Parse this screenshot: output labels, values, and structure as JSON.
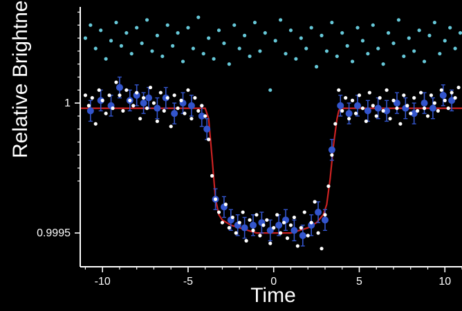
{
  "chart_data": {
    "type": "scatter",
    "title": "",
    "xlabel": "Time",
    "ylabel": "Relative Brightness",
    "xlim": [
      -11.3,
      11
    ],
    "ylim": [
      0.99937,
      1.00037
    ],
    "x_ticks": [
      -10,
      -5,
      0,
      5,
      10
    ],
    "x_tick_labels": [
      "-10",
      "-5",
      "0",
      "5",
      "10"
    ],
    "y_ticks": [
      0.9995,
      1
    ],
    "y_tick_labels": [
      "0.9995",
      "1"
    ],
    "grid": false,
    "legend": "none",
    "series": [
      {
        "kind": "model-line",
        "color": "#cc2222",
        "x": [
          -11.3,
          -4.0,
          -3.8,
          -3.6,
          -3.4,
          -3.2,
          -3.0,
          -2.5,
          -2.0,
          -1.5,
          -1.0,
          -0.5,
          0.0,
          0.5,
          1.0,
          1.5,
          2.0,
          2.5,
          2.9,
          3.1,
          3.3,
          3.5,
          3.7,
          3.8,
          3.9,
          11.0
        ],
        "y": [
          0.99998,
          0.99998,
          0.99994,
          0.99979,
          0.99963,
          0.99957,
          0.99955,
          0.99953,
          0.99952,
          0.99951,
          0.9995,
          0.9995,
          0.9995,
          0.9995,
          0.9995,
          0.99951,
          0.99952,
          0.99954,
          0.99957,
          0.99961,
          0.99971,
          0.99984,
          0.99994,
          0.99997,
          0.99998,
          0.99998
        ]
      },
      {
        "kind": "binned",
        "color": "#3355cc",
        "x": [
          -10.7,
          -10.1,
          -9.5,
          -9.0,
          -8.4,
          -8.0,
          -7.6,
          -7.3,
          -6.8,
          -6.3,
          -5.8,
          -5.3,
          -4.8,
          -4.2,
          -3.9,
          -3.4,
          -2.9,
          -2.5,
          -2.1,
          -1.7,
          -1.2,
          -0.7,
          -0.2,
          0.3,
          0.7,
          1.2,
          1.7,
          2.2,
          2.6,
          3.0,
          3.4,
          3.9,
          4.4,
          4.9,
          5.5,
          6.1,
          6.6,
          7.2,
          7.7,
          8.2,
          8.8,
          9.3,
          9.9,
          10.4
        ],
        "y": [
          0.99997,
          1.00001,
          0.99999,
          1.00006,
          1.00001,
          1.00003,
          1.0,
          1.00002,
          0.99998,
          1.00002,
          0.99996,
          1.0,
          0.99999,
          0.99995,
          0.9999,
          0.99963,
          0.9996,
          0.99955,
          0.99953,
          0.99952,
          0.99953,
          0.99954,
          0.99951,
          0.99953,
          0.99955,
          0.99951,
          0.99949,
          0.99953,
          0.99958,
          0.99955,
          0.99982,
          0.99999,
          0.99996,
          0.99999,
          0.99997,
          0.99998,
          0.99997,
          1.0,
          0.99998,
          0.99996,
          1.0,
          0.99998,
          1.00003,
          1.00001
        ],
        "err": [
          4e-05,
          4e-05,
          4e-05,
          4e-05,
          4e-05,
          4e-05,
          4e-05,
          4e-05,
          4e-05,
          4e-05,
          4e-05,
          4e-05,
          4e-05,
          4e-05,
          4e-05,
          4e-05,
          4e-05,
          4e-05,
          4e-05,
          4e-05,
          4e-05,
          4e-05,
          4e-05,
          4e-05,
          4e-05,
          4e-05,
          4e-05,
          4e-05,
          4e-05,
          4e-05,
          4e-05,
          4e-05,
          4e-05,
          4e-05,
          4e-05,
          4e-05,
          4e-05,
          4e-05,
          4e-05,
          4e-05,
          4e-05,
          4e-05,
          4e-05,
          4e-05
        ]
      },
      {
        "kind": "raw",
        "color": "#ffffff",
        "x": [
          -11.0,
          -10.8,
          -10.6,
          -10.4,
          -10.2,
          -10.0,
          -9.8,
          -9.6,
          -9.4,
          -9.2,
          -9.0,
          -8.8,
          -8.6,
          -8.4,
          -8.2,
          -8.0,
          -7.8,
          -7.6,
          -7.4,
          -7.2,
          -7.0,
          -6.8,
          -6.6,
          -6.4,
          -6.2,
          -6.0,
          -5.8,
          -5.6,
          -5.4,
          -5.2,
          -5.0,
          -4.8,
          -4.6,
          -4.4,
          -4.2,
          -4.0,
          -3.8,
          -3.6,
          -3.4,
          -3.2,
          -3.0,
          -2.8,
          -2.6,
          -2.4,
          -2.2,
          -2.0,
          -1.8,
          -1.6,
          -1.4,
          -1.2,
          -1.0,
          -0.8,
          -0.6,
          -0.4,
          -0.2,
          0.0,
          0.2,
          0.4,
          0.6,
          0.8,
          1.0,
          1.2,
          1.4,
          1.6,
          1.8,
          2.0,
          2.2,
          2.4,
          2.6,
          2.8,
          3.0,
          3.2,
          3.4,
          3.6,
          3.8,
          4.0,
          4.2,
          4.4,
          4.6,
          4.8,
          5.0,
          5.2,
          5.4,
          5.6,
          5.8,
          6.0,
          6.2,
          6.4,
          6.6,
          6.8,
          7.0,
          7.2,
          7.4,
          7.6,
          7.8,
          8.0,
          8.2,
          8.4,
          8.6,
          8.8,
          9.0,
          9.2,
          9.4,
          9.6,
          9.8,
          10.0,
          10.2,
          10.4,
          10.6,
          10.8
        ],
        "y": [
          1.00003,
          0.99999,
          1.00002,
          0.99992,
          1.00005,
          1.00001,
          0.99996,
          1.00003,
          0.99998,
          1.00008,
          1.00003,
          0.99997,
          1.00005,
          1.00001,
          0.99999,
          1.00004,
          0.99994,
          1.00002,
          0.99998,
          1.00006,
          1.0,
          0.99993,
          1.00004,
          0.99997,
          1.00002,
          0.99991,
          1.00003,
          0.99998,
          1.00001,
          0.99996,
          1.00005,
          0.99994,
          1.00002,
          0.99997,
          0.99999,
          0.99995,
          0.99986,
          0.99972,
          0.99963,
          0.99958,
          0.99954,
          0.99961,
          0.99952,
          0.99956,
          0.9995,
          0.99954,
          0.99958,
          0.99947,
          0.99955,
          0.99951,
          0.99957,
          0.99949,
          0.99953,
          0.99955,
          0.99946,
          0.99952,
          0.99957,
          0.9995,
          0.99954,
          0.99948,
          0.99953,
          0.99956,
          0.99945,
          0.99952,
          0.99958,
          0.99949,
          0.99954,
          0.99962,
          0.9995,
          0.99944,
          0.99957,
          0.99968,
          0.9998,
          0.99992,
          1.00005,
          0.99997,
          1.00002,
          0.99994,
          1.00001,
          0.99996,
          1.00003,
          0.99998,
          0.99993,
          1.00004,
          0.99999,
          0.99995,
          1.00002,
          0.99997,
          1.00005,
          0.99994,
          1.00001,
          0.99998,
          0.99992,
          1.00003,
          0.99999,
          0.99996,
          1.00002,
          0.99997,
          1.00004,
          0.99998,
          0.99995,
          1.00003,
          1.0,
          0.99997,
          1.00005,
          1.00001,
          0.99998,
          1.00004,
          1.00002,
          1.00006
        ]
      },
      {
        "kind": "comparison",
        "color": "#66c8d8",
        "x": [
          -11.0,
          -10.7,
          -10.4,
          -10.1,
          -9.8,
          -9.5,
          -9.2,
          -8.9,
          -8.6,
          -8.3,
          -8.0,
          -7.7,
          -7.4,
          -7.1,
          -6.8,
          -6.5,
          -6.2,
          -5.9,
          -5.6,
          -5.3,
          -5.0,
          -4.7,
          -4.4,
          -4.1,
          -3.8,
          -3.5,
          -3.2,
          -2.9,
          -2.6,
          -2.3,
          -2.0,
          -1.7,
          -1.4,
          -1.1,
          -0.8,
          -0.5,
          -0.2,
          0.1,
          0.4,
          0.7,
          1.0,
          1.3,
          1.6,
          1.9,
          2.2,
          2.5,
          2.8,
          3.1,
          3.4,
          3.7,
          4.0,
          4.3,
          4.6,
          4.9,
          5.2,
          5.5,
          5.8,
          6.1,
          6.4,
          6.7,
          7.0,
          7.3,
          7.6,
          7.9,
          8.2,
          8.5,
          8.8,
          9.1,
          9.4,
          9.7,
          10.0,
          10.3,
          10.6,
          10.9
        ],
        "y": [
          1.00025,
          1.0003,
          1.00021,
          1.00028,
          1.00017,
          1.00024,
          1.00031,
          1.00022,
          1.00027,
          1.00019,
          1.00029,
          1.00023,
          1.00032,
          1.0002,
          1.00026,
          1.00018,
          1.0003,
          1.00022,
          1.00027,
          1.00016,
          1.00029,
          1.00021,
          1.00033,
          1.00019,
          1.00025,
          1.00017,
          1.00028,
          1.00023,
          1.00015,
          1.0003,
          1.00021,
          1.00026,
          1.00018,
          1.00031,
          1.0002,
          1.00027,
          1.00005,
          1.00024,
          1.00032,
          1.00019,
          1.00028,
          1.00017,
          1.00025,
          1.00021,
          1.00029,
          1.00014,
          1.00026,
          1.0002,
          1.00031,
          1.00018,
          1.00027,
          1.00022,
          1.00016,
          1.00029,
          1.00024,
          1.00019,
          1.0003,
          1.00021,
          1.00015,
          1.00027,
          1.00023,
          1.00032,
          1.00018,
          1.00025,
          1.0002,
          1.00028,
          1.00016,
          1.00026,
          1.00031,
          1.00019,
          1.00024,
          1.00029,
          1.00021,
          1.00027
        ]
      }
    ]
  }
}
